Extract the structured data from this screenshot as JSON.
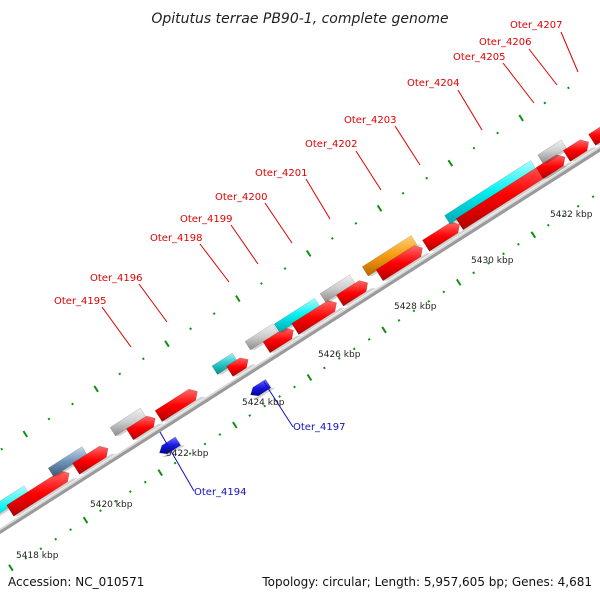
{
  "title": "Opitutus terrae PB90-1, complete genome",
  "footer": {
    "accession": "Accession: NC_010571",
    "summary": "Topology: circular; Length: 5,957,605 bp; Genes: 4,681"
  },
  "colors": {
    "forward_cds": "#ff0000",
    "reverse_cds": "#1818e0",
    "cyan_feature": "#00e8ec",
    "grey_feature": "#c8c8c8",
    "orange_feature": "#f29a10",
    "backbone": "#7a7a7a",
    "tick": "#109010",
    "label_red": "#e00000",
    "label_blue": "#1010c0"
  },
  "kbp_labels": [
    "5418 kbp",
    "5420 kbp",
    "5422 kbp",
    "5424 kbp",
    "5426 kbp",
    "5428 kbp",
    "5430 kbp",
    "5432 kbp"
  ],
  "gene_labels_top": [
    "Oter_4195",
    "Oter_4196",
    "Oter_4198",
    "Oter_4199",
    "Oter_4200",
    "Oter_4201",
    "Oter_4202",
    "Oter_4203",
    "Oter_4204",
    "Oter_4205",
    "Oter_4206",
    "Oter_4207"
  ],
  "gene_labels_bottom": [
    "Oter_4194",
    "Oter_4197"
  ]
}
